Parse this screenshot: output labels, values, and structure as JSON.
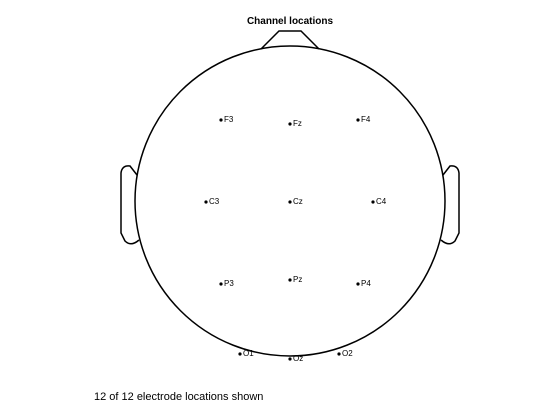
{
  "title": "Channel locations",
  "footer": "12 of 12 electrode locations shown",
  "colors": {
    "outline": "#000000",
    "electrode": "#000000",
    "background": "#ffffff"
  },
  "electrodes": [
    {
      "label": "F3"
    },
    {
      "label": "Fz"
    },
    {
      "label": "F4"
    },
    {
      "label": "C3"
    },
    {
      "label": "Cz"
    },
    {
      "label": "C4"
    },
    {
      "label": "P3"
    },
    {
      "label": "Pz"
    },
    {
      "label": "P4"
    },
    {
      "label": "O1"
    },
    {
      "label": "Oz"
    },
    {
      "label": "O2"
    }
  ]
}
